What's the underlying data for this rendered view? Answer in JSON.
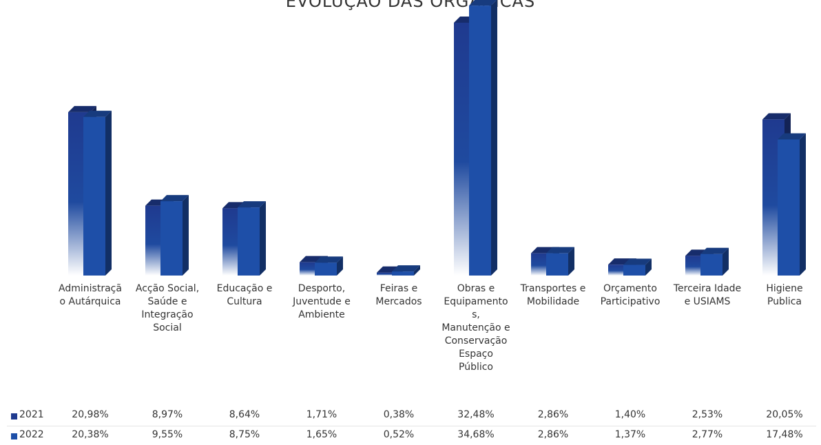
{
  "chart_data": {
    "type": "bar3d",
    "title": "EVOLUÇÃO DAS ORGÂNICAS",
    "categories": [
      "Administração Autárquica",
      "Acção Social, Saúde e Integração Social",
      "Educação e Cultura",
      "Desporto, Juventude e Ambiente",
      "Feiras e Mercados",
      "Obras e Equipamentos, Manutenção e Conservação Espaço Público",
      "Transportes e Mobilidade",
      "Orçamento Participativo",
      "Terceira Idade e USIAMS",
      "Higiene Publica"
    ],
    "series": [
      {
        "name": "2021",
        "color": "#1f3a8f",
        "values": [
          20.98,
          8.97,
          8.64,
          1.71,
          0.38,
          32.48,
          2.86,
          1.4,
          2.53,
          20.05
        ],
        "value_labels": [
          "20,98%",
          "8,97%",
          "8,64%",
          "1,71%",
          "0,38%",
          "32,48%",
          "2,86%",
          "1,40%",
          "2,53%",
          "20,05%"
        ]
      },
      {
        "name": "2022",
        "color": "#1e4fa8",
        "values": [
          20.38,
          9.55,
          8.75,
          1.65,
          0.52,
          34.68,
          2.86,
          1.37,
          2.77,
          17.48
        ],
        "value_labels": [
          "20,38%",
          "9,55%",
          "8,75%",
          "1,65%",
          "0,52%",
          "34,68%",
          "2,86%",
          "1,37%",
          "2,77%",
          "17,48%"
        ]
      }
    ]
  }
}
